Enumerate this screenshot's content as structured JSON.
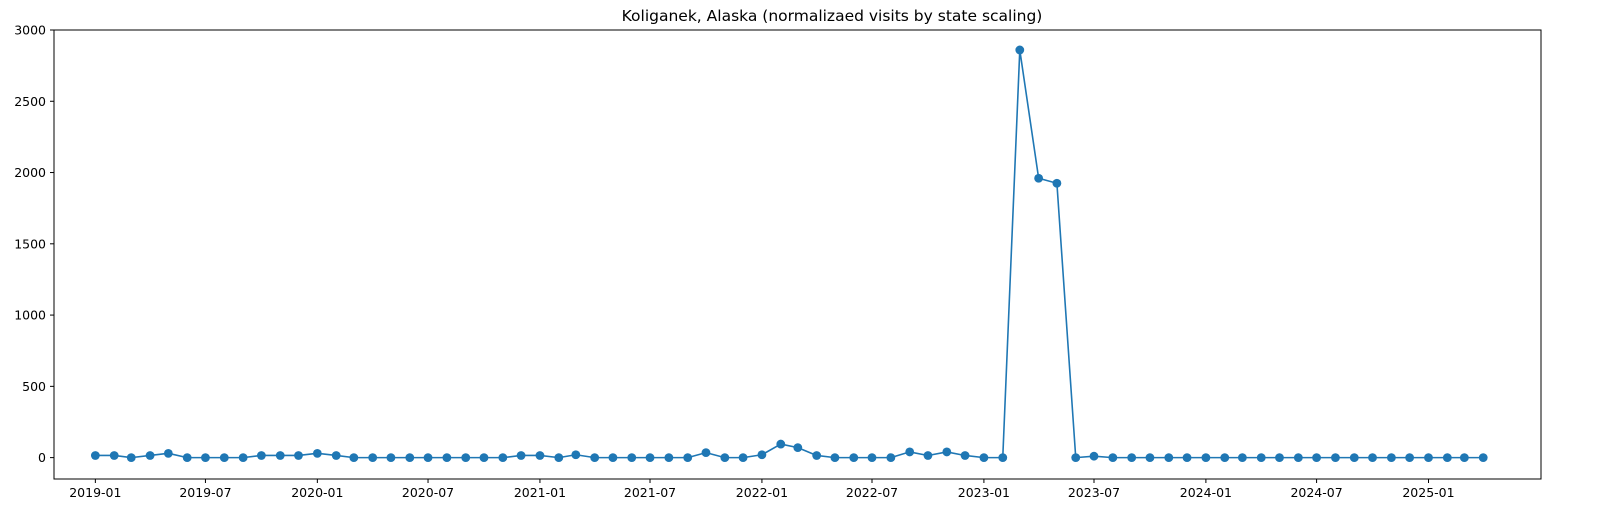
{
  "chart_data": {
    "type": "line",
    "title": "Koliganek, Alaska (normalizaed visits by state scaling)",
    "xlabel": "",
    "ylabel": "",
    "ylim": [
      -150,
      3000
    ],
    "xlim": [
      "2018-10-25",
      "2025-07-05"
    ],
    "grid": false,
    "legend": "none",
    "colors": {
      "series": "#1f77b4",
      "axes": "#000000",
      "background": "#ffffff"
    },
    "x_ticks": [
      "2019-01",
      "2019-07",
      "2020-01",
      "2020-07",
      "2021-01",
      "2021-07",
      "2022-01",
      "2022-07",
      "2023-01",
      "2023-07",
      "2024-01",
      "2024-07",
      "2025-01"
    ],
    "y_ticks": [
      "0",
      "500",
      "1000",
      "1500",
      "2000",
      "2500",
      "3000"
    ],
    "marker": "circle",
    "series": [
      {
        "x": [
          "2019-01",
          "2019-02",
          "2019-03",
          "2019-04",
          "2019-05",
          "2019-06",
          "2019-07",
          "2019-08",
          "2019-09",
          "2019-10",
          "2019-11",
          "2019-12",
          "2020-01",
          "2020-02",
          "2020-03",
          "2020-04",
          "2020-05",
          "2020-06",
          "2020-07",
          "2020-08",
          "2020-09",
          "2020-10",
          "2020-11",
          "2020-12",
          "2021-01",
          "2021-02",
          "2021-03",
          "2021-04",
          "2021-05",
          "2021-06",
          "2021-07",
          "2021-08",
          "2021-09",
          "2021-10",
          "2021-11",
          "2021-12",
          "2022-01",
          "2022-02",
          "2022-03",
          "2022-04",
          "2022-05",
          "2022-06",
          "2022-07",
          "2022-08",
          "2022-09",
          "2022-10",
          "2022-11",
          "2022-12",
          "2023-01",
          "2023-02",
          "2023-03",
          "2023-04",
          "2023-05",
          "2023-06",
          "2023-07",
          "2023-08",
          "2023-09",
          "2023-10",
          "2023-11",
          "2023-12",
          "2024-01",
          "2024-02",
          "2024-03",
          "2024-04",
          "2024-05",
          "2024-06",
          "2024-07",
          "2024-08",
          "2024-09",
          "2024-10",
          "2024-11",
          "2024-12",
          "2025-01",
          "2025-02",
          "2025-03",
          "2025-04"
        ],
        "values": [
          15,
          15,
          0,
          15,
          30,
          0,
          0,
          0,
          0,
          15,
          15,
          15,
          30,
          15,
          0,
          0,
          0,
          0,
          0,
          0,
          0,
          0,
          0,
          15,
          15,
          0,
          20,
          0,
          0,
          0,
          0,
          0,
          0,
          35,
          0,
          0,
          20,
          95,
          70,
          15,
          0,
          0,
          0,
          0,
          40,
          15,
          40,
          15,
          0,
          0,
          2860,
          1960,
          1925,
          0,
          10,
          0,
          0,
          0,
          0,
          0,
          0,
          0,
          0,
          0,
          0,
          0,
          0,
          0,
          0,
          0,
          0,
          0,
          0,
          0,
          0,
          0
        ]
      }
    ]
  }
}
